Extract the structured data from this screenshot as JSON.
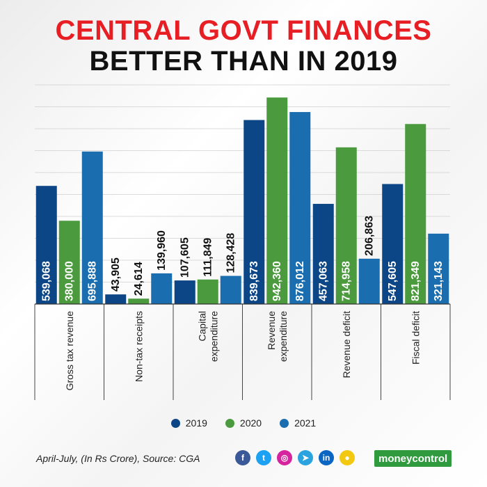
{
  "header": {
    "title_line1": "CENTRAL GOVT FINANCES",
    "title_line2": "BETTER THAN IN 2019"
  },
  "chart_data": {
    "type": "bar",
    "categories": [
      "Gross tax revenue",
      "Non-tax receipts",
      "Capital expenditure",
      "Revenue expenditure",
      "Revenue deficit",
      "Fiscal deficit"
    ],
    "category_lines": [
      [
        "Gross tax revenue"
      ],
      [
        "Non-tax receipts"
      ],
      [
        "Capital",
        "expenditure"
      ],
      [
        "Revenue",
        "expenditure"
      ],
      [
        "Revenue deficit"
      ],
      [
        "Fiscal deficit"
      ]
    ],
    "series": [
      {
        "name": "2019",
        "color": "#0d4687",
        "values": [
          539068,
          43905,
          107605,
          839673,
          457063,
          547605
        ],
        "labels": [
          "539,068",
          "43,905",
          "107,605",
          "839,673",
          "457,063",
          "547,605"
        ]
      },
      {
        "name": "2020",
        "color": "#4b9a3d",
        "values": [
          380000,
          24614,
          111849,
          942360,
          714958,
          821349
        ],
        "labels": [
          "380,000",
          "24,614",
          "111,849",
          "942,360",
          "714,958",
          "821,349"
        ]
      },
      {
        "name": "2021",
        "color": "#1a6daf",
        "values": [
          695888,
          139960,
          128428,
          876012,
          206863,
          321143
        ],
        "labels": [
          "695,888",
          "139,960",
          "128,428",
          "876,012",
          "206,863",
          "321,143"
        ]
      }
    ],
    "ylim": [
      0,
      1000000
    ],
    "grid": true,
    "legend_position": "bottom"
  },
  "footer": {
    "note": "April-July, (In Rs Crore), Source: CGA",
    "social_icons": [
      {
        "icon": "facebook-icon",
        "glyph": "f",
        "color": "#3b5998"
      },
      {
        "icon": "twitter-icon",
        "glyph": "t",
        "color": "#1da1f2"
      },
      {
        "icon": "instagram-icon",
        "glyph": "◎",
        "color": "#d6249f"
      },
      {
        "icon": "telegram-icon",
        "glyph": "➤",
        "color": "#2aa3de"
      },
      {
        "icon": "linkedin-icon",
        "glyph": "in",
        "color": "#0a66c2"
      },
      {
        "icon": "koo-icon",
        "glyph": "●",
        "color": "#f2c811"
      }
    ],
    "brand_part1": "money",
    "brand_part2": "control"
  }
}
